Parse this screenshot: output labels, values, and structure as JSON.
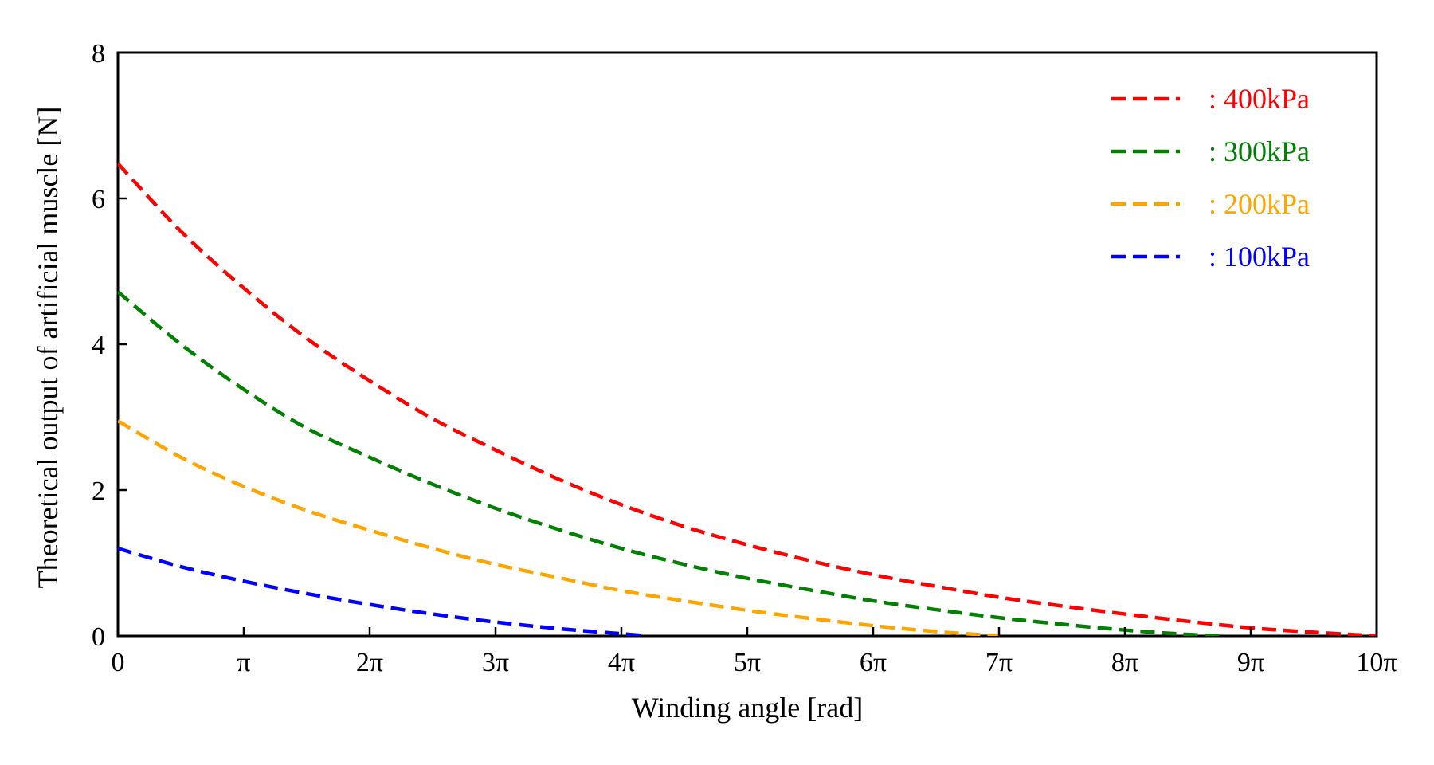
{
  "chart_data": {
    "type": "line",
    "title": "",
    "xlabel": "Winding angle [rad]",
    "ylabel": "Theoretical output of artificial muscle [N]",
    "xlim": [
      0,
      10
    ],
    "ylim": [
      0,
      8
    ],
    "x_unit": "π rad",
    "x_ticks": [
      {
        "value": 0,
        "label": "0"
      },
      {
        "value": 1,
        "label": "π"
      },
      {
        "value": 2,
        "label": "2π"
      },
      {
        "value": 3,
        "label": "3π"
      },
      {
        "value": 4,
        "label": "4π"
      },
      {
        "value": 5,
        "label": "5π"
      },
      {
        "value": 6,
        "label": "6π"
      },
      {
        "value": 7,
        "label": "7π"
      },
      {
        "value": 8,
        "label": "8π"
      },
      {
        "value": 9,
        "label": "9π"
      },
      {
        "value": 10,
        "label": "10π"
      }
    ],
    "y_ticks": [
      {
        "value": 0,
        "label": "0"
      },
      {
        "value": 2,
        "label": "2"
      },
      {
        "value": 4,
        "label": "4"
      },
      {
        "value": 6,
        "label": "6"
      },
      {
        "value": 8,
        "label": "8"
      }
    ],
    "grid": false,
    "legend_position": "top-right",
    "line_style": "dashed",
    "series": [
      {
        "name": ": 400kPa",
        "color": "#ff0000",
        "x": [
          0,
          0.5,
          1,
          1.5,
          2,
          2.5,
          3,
          3.5,
          4,
          4.5,
          5,
          5.5,
          6,
          6.5,
          7,
          7.5,
          8,
          8.5,
          9,
          9.5,
          10
        ],
        "y": [
          6.48,
          5.55,
          4.77,
          4.08,
          3.5,
          2.98,
          2.55,
          2.15,
          1.8,
          1.5,
          1.25,
          1.03,
          0.84,
          0.68,
          0.53,
          0.41,
          0.3,
          0.2,
          0.11,
          0.05,
          0.0
        ]
      },
      {
        "name": ": 300kPa",
        "color": "#008000",
        "x": [
          0,
          0.5,
          1,
          1.5,
          2,
          2.5,
          3,
          3.5,
          4,
          4.5,
          5,
          5.5,
          6,
          6.5,
          7,
          7.5,
          8,
          8.5,
          8.8
        ],
        "y": [
          4.72,
          4.0,
          3.38,
          2.85,
          2.45,
          2.08,
          1.75,
          1.46,
          1.2,
          0.98,
          0.79,
          0.63,
          0.48,
          0.36,
          0.25,
          0.16,
          0.08,
          0.02,
          0.0
        ]
      },
      {
        "name": ": 200kPa",
        "color": "#ffa500",
        "x": [
          0,
          0.5,
          1,
          1.5,
          2,
          2.5,
          3,
          3.5,
          4,
          4.5,
          5,
          5.5,
          6,
          6.5,
          7
        ],
        "y": [
          2.95,
          2.45,
          2.05,
          1.72,
          1.45,
          1.2,
          0.98,
          0.8,
          0.62,
          0.48,
          0.35,
          0.24,
          0.14,
          0.06,
          0.0
        ]
      },
      {
        "name": ": 100kPa",
        "color": "#0000ff",
        "x": [
          0,
          0.5,
          1,
          1.5,
          2,
          2.5,
          3,
          3.5,
          4,
          4.2
        ],
        "y": [
          1.2,
          0.95,
          0.75,
          0.58,
          0.43,
          0.3,
          0.19,
          0.1,
          0.03,
          0.0
        ]
      }
    ]
  }
}
